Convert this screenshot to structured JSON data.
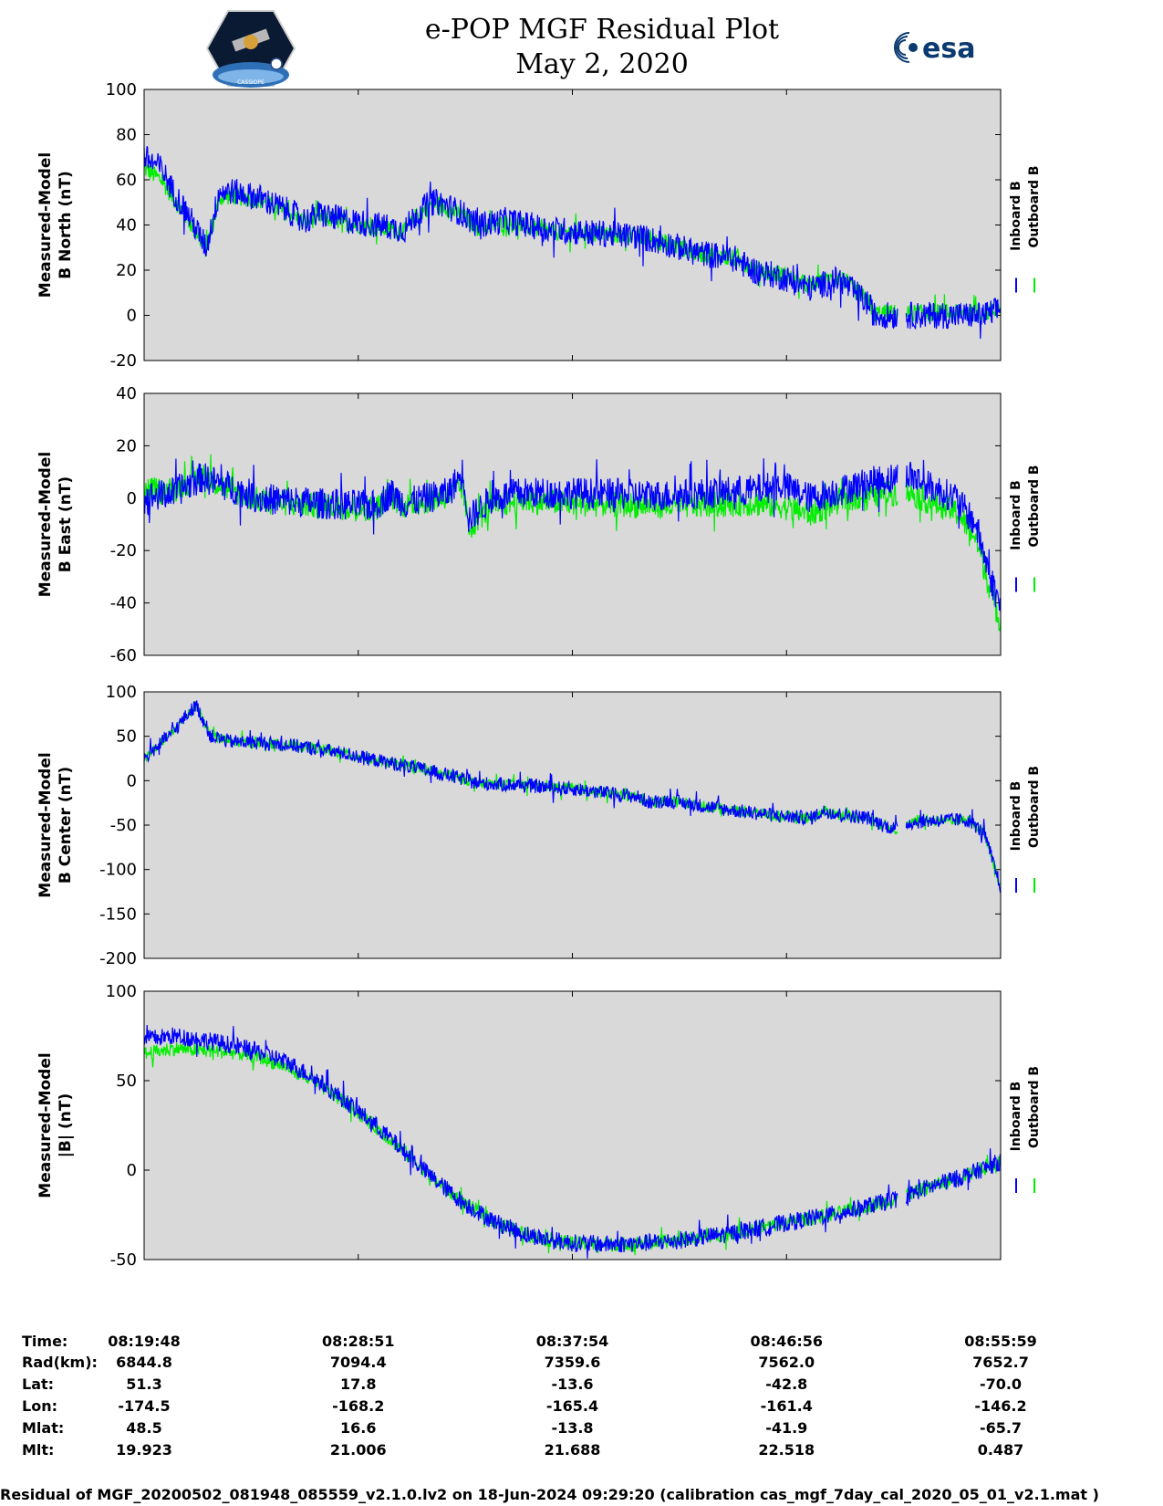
{
  "header": {
    "title": "e-POP MGF Residual Plot",
    "date": "May 2, 2020",
    "logo_left_text": "CASSIOPE",
    "logo_right_text": "esa"
  },
  "colors": {
    "background": "#d9d9d9",
    "inboard": "#0000ff",
    "outboard": "#00ee00"
  },
  "chart_data": [
    {
      "type": "line",
      "ylabel": [
        "Measured-Model",
        "B North (nT)"
      ],
      "ylim": [
        -20,
        100
      ],
      "yticks": [
        "100",
        "80",
        "60",
        "40",
        "20",
        "0",
        "-20"
      ],
      "ytick_values": [
        100,
        80,
        60,
        40,
        20,
        0,
        -20
      ],
      "legend": [
        "Inboard B",
        "Outboard B"
      ],
      "x": [
        0,
        60,
        100,
        150,
        215,
        260,
        300,
        400,
        500,
        560,
        600,
        700,
        800,
        900,
        940,
        990,
        1020,
        1100,
        1150,
        1250,
        1400,
        1600,
        1700,
        1800,
        1900,
        2040,
        2100,
        2200,
        2300,
        2400,
        2500,
        2520,
        2560,
        2600,
        2700,
        2800,
        2850,
        2900,
        2956
      ],
      "series": [
        {
          "name": "Inboard B",
          "values": [
            70,
            65,
            55,
            45,
            30,
            55,
            55,
            52,
            46,
            42,
            45,
            42,
            40,
            38,
            45,
            50,
            50,
            45,
            40,
            42,
            38,
            36,
            35,
            32,
            28,
            25,
            20,
            17,
            12,
            16,
            5,
            0,
            0,
            0,
            0,
            0,
            0,
            0,
            3
          ],
          "noise": 6
        },
        {
          "name": "Outboard B",
          "values": [
            65,
            60,
            52,
            43,
            29,
            52,
            53,
            51,
            45,
            41,
            44,
            41,
            39,
            37,
            44,
            49,
            49,
            44,
            39,
            41,
            37,
            36,
            35,
            32,
            28,
            25,
            21,
            18,
            13,
            17,
            6,
            1,
            1,
            1,
            1,
            1,
            1,
            1,
            3
          ],
          "noise": 4
        }
      ],
      "gap": [
        2600,
        2630
      ]
    },
    {
      "type": "line",
      "ylabel": [
        "Measured-Model",
        "B East (nT)"
      ],
      "ylim": [
        -60,
        40
      ],
      "yticks": [
        "40",
        "20",
        "0",
        "-20",
        "-40",
        "-60"
      ],
      "ytick_values": [
        40,
        20,
        0,
        -20,
        -40,
        -60
      ],
      "legend": [
        "Inboard B",
        "Outboard B"
      ],
      "x": [
        0,
        100,
        200,
        300,
        400,
        600,
        800,
        850,
        900,
        1050,
        1100,
        1120,
        1150,
        1200,
        1300,
        1500,
        1800,
        2100,
        2200,
        2300,
        2400,
        2500,
        2600,
        2630,
        2700,
        2800,
        2870,
        2920,
        2956
      ],
      "series": [
        {
          "name": "Inboard B",
          "values": [
            0,
            2,
            8,
            4,
            0,
            -2,
            -3,
            2,
            -2,
            2,
            10,
            -8,
            -5,
            0,
            2,
            2,
            1,
            3,
            5,
            0,
            3,
            6,
            8,
            10,
            5,
            0,
            -10,
            -30,
            -42
          ],
          "noise": 6
        },
        {
          "name": "Outboard B",
          "values": [
            3,
            3,
            9,
            3,
            -1,
            -3,
            -4,
            1,
            -3,
            1,
            4,
            -12,
            -8,
            -3,
            -1,
            -2,
            -3,
            -2,
            -3,
            -6,
            -1,
            1,
            2,
            3,
            -1,
            -5,
            -15,
            -35,
            -48
          ],
          "noise": 5
        }
      ],
      "gap": [
        2600,
        2630
      ]
    },
    {
      "type": "line",
      "ylabel": [
        "Measured-Model",
        "B Center (nT)"
      ],
      "ylim": [
        -200,
        100
      ],
      "yticks": [
        "100",
        "50",
        "0",
        "-50",
        "-100",
        "-150",
        "-200"
      ],
      "ytick_values": [
        100,
        50,
        0,
        -50,
        -100,
        -150,
        -200
      ],
      "legend": [
        "Inboard B",
        "Outboard B"
      ],
      "x": [
        0,
        50,
        100,
        150,
        180,
        230,
        300,
        400,
        500,
        600,
        700,
        800,
        900,
        1000,
        1100,
        1150,
        1300,
        1500,
        1700,
        1750,
        1800,
        2000,
        2200,
        2300,
        2350,
        2400,
        2500,
        2550,
        2600,
        2630,
        2700,
        2800,
        2850,
        2900,
        2956
      ],
      "series": [
        {
          "name": "Inboard B",
          "values": [
            25,
            40,
            55,
            75,
            85,
            50,
            44,
            43,
            40,
            36,
            30,
            23,
            17,
            10,
            2,
            -3,
            -5,
            -10,
            -18,
            -25,
            -22,
            -32,
            -40,
            -42,
            -34,
            -38,
            -42,
            -50,
            -55,
            -48,
            -45,
            -44,
            -45,
            -60,
            -120
          ],
          "noise": 8
        },
        {
          "name": "Outboard B",
          "values": [
            25,
            40,
            55,
            75,
            85,
            50,
            44,
            43,
            40,
            36,
            30,
            23,
            17,
            10,
            2,
            -3,
            -5,
            -10,
            -18,
            -25,
            -22,
            -32,
            -40,
            -42,
            -34,
            -38,
            -42,
            -50,
            -55,
            -48,
            -45,
            -44,
            -45,
            -60,
            -120
          ],
          "noise": 6
        }
      ],
      "gap": [
        2600,
        2630
      ]
    },
    {
      "type": "line",
      "ylabel": [
        "Measured-Model",
        "|B| (nT)"
      ],
      "ylim": [
        -50,
        100
      ],
      "yticks": [
        "100",
        "50",
        "0",
        "-50"
      ],
      "ytick_values": [
        100,
        50,
        0,
        -50
      ],
      "legend": [
        "Inboard B",
        "Outboard B"
      ],
      "x": [
        0,
        100,
        200,
        300,
        400,
        500,
        600,
        700,
        800,
        900,
        1000,
        1100,
        1200,
        1300,
        1400,
        1500,
        1600,
        1700,
        1800,
        1900,
        2000,
        2100,
        2200,
        2300,
        2400,
        2500,
        2600,
        2630,
        2700,
        2800,
        2900,
        2956
      ],
      "series": [
        {
          "name": "Inboard B",
          "values": [
            73,
            75,
            73,
            70,
            66,
            60,
            50,
            38,
            25,
            10,
            -5,
            -18,
            -28,
            -35,
            -39,
            -41,
            -41.5,
            -41,
            -40,
            -38,
            -36,
            -33,
            -30,
            -27,
            -24,
            -20,
            -16,
            -14,
            -10,
            -5,
            1,
            5
          ],
          "noise": 5
        },
        {
          "name": "Outboard B",
          "values": [
            65,
            68,
            67,
            66,
            63,
            57,
            48,
            37,
            24,
            10,
            -5,
            -18,
            -28,
            -35,
            -39,
            -41,
            -41.5,
            -41,
            -40,
            -38,
            -36,
            -33,
            -30,
            -27,
            -24,
            -20,
            -16,
            -14,
            -10,
            -5,
            1,
            5
          ],
          "noise": 4
        }
      ],
      "gap": [
        2600,
        2630
      ]
    }
  ],
  "xrange_seconds": [
    0,
    2171
  ],
  "info_table": {
    "row_labels": [
      "Time:",
      "Rad(km):",
      "Lat:",
      "Lon:",
      "Mlat:",
      "Mlt:"
    ],
    "columns": [
      [
        "08:19:48",
        "6844.8",
        "51.3",
        "-174.5",
        "48.5",
        "19.923"
      ],
      [
        "08:28:51",
        "7094.4",
        "17.8",
        "-168.2",
        "16.6",
        "21.006"
      ],
      [
        "08:37:54",
        "7359.6",
        "-13.6",
        "-165.4",
        "-13.8",
        "21.688"
      ],
      [
        "08:46:56",
        "7562.0",
        "-42.8",
        "-161.4",
        "-41.9",
        "22.518"
      ],
      [
        "08:55:59",
        "7652.7",
        "-70.0",
        "-146.2",
        "-65.7",
        "0.487"
      ]
    ]
  },
  "footer": "Residual of MGF_20200502_081948_085559_v2.1.0.lv2 on 18-Jun-2024 09:29:20 (calibration cas_mgf_7day_cal_2020_05_01_v2.1.mat )"
}
